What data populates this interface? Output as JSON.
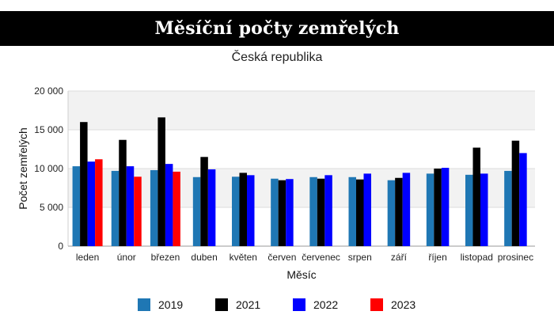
{
  "header": {
    "title": "Měsíční počty zemřelých"
  },
  "chart_data": {
    "type": "bar",
    "title": "Měsíční počty zemřelých",
    "subtitle": "Česká republika",
    "xlabel": "Měsíc",
    "ylabel": "Počet zemřelých",
    "ylim": [
      0,
      20000
    ],
    "y_ticks": [
      0,
      5000,
      10000,
      15000,
      20000
    ],
    "y_tick_labels": [
      "0",
      "5 000",
      "10 000",
      "15 000",
      "20 000"
    ],
    "grid": true,
    "legend_position": "bottom",
    "categories": [
      "leden",
      "únor",
      "březen",
      "duben",
      "květen",
      "červen",
      "červenec",
      "srpen",
      "září",
      "říjen",
      "listopad",
      "prosinec"
    ],
    "series": [
      {
        "name": "2019",
        "color": "#1f77b4",
        "values": [
          10300,
          9700,
          9800,
          8900,
          8950,
          8700,
          8900,
          8900,
          8500,
          9350,
          9200,
          9700
        ]
      },
      {
        "name": "2021",
        "color": "#000000",
        "values": [
          16000,
          13700,
          16600,
          11500,
          9450,
          8500,
          8700,
          8600,
          8800,
          10000,
          12700,
          13600
        ]
      },
      {
        "name": "2022",
        "color": "#0000ff",
        "values": [
          10900,
          10300,
          10600,
          9900,
          9150,
          8650,
          9150,
          9350,
          9450,
          10100,
          9350,
          12000
        ]
      },
      {
        "name": "2023",
        "color": "#ff0000",
        "values": [
          11200,
          8950,
          9600,
          null,
          null,
          null,
          null,
          null,
          null,
          null,
          null,
          null
        ]
      }
    ]
  }
}
